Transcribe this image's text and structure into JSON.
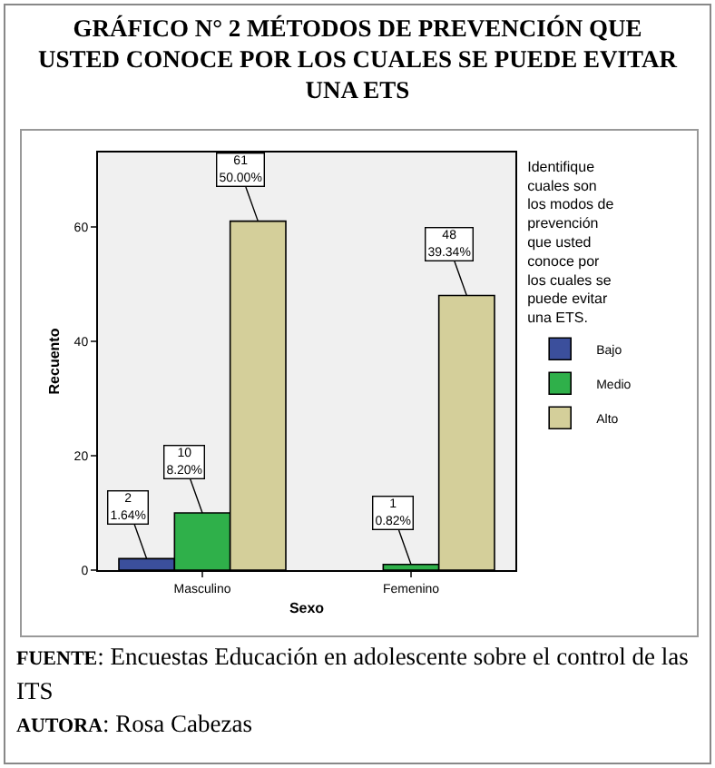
{
  "chart_data": {
    "type": "bar",
    "title": "GRÁFICO N° 2  MÉTODOS DE PREVENCIÓN QUE USTED CONOCE POR LOS CUALES SE PUEDE EVITAR UNA ETS",
    "xlabel": "Sexo",
    "ylabel": "Recuento",
    "legend_title": "Identifique cuales son los modos de prevención que usted conoce por los cuales se puede evitar una ETS.",
    "categories": [
      "Masculino",
      "Femenino"
    ],
    "series": [
      {
        "name": "Bajo",
        "color": "#3b4f9c",
        "values": [
          2,
          null
        ],
        "value_labels": [
          "2\n1.64%",
          null
        ]
      },
      {
        "name": "Medio",
        "color": "#2fb04a",
        "values": [
          10,
          1
        ],
        "value_labels": [
          "10\n8.20%",
          "1\n0.82%"
        ]
      },
      {
        "name": "Alto",
        "color": "#d4cf9a",
        "values": [
          61,
          48
        ],
        "value_labels": [
          "61\n50.00%",
          "48\n39.34%"
        ]
      }
    ],
    "ylim": [
      0,
      73
    ],
    "yticks": [
      0,
      20,
      40,
      60
    ],
    "grid": false,
    "legend": "right",
    "annotations": [
      "FUENTE: Encuestas Educación en adolescente sobre el control de las ITS",
      "AUTORA: Rosa Cabezas"
    ]
  }
}
